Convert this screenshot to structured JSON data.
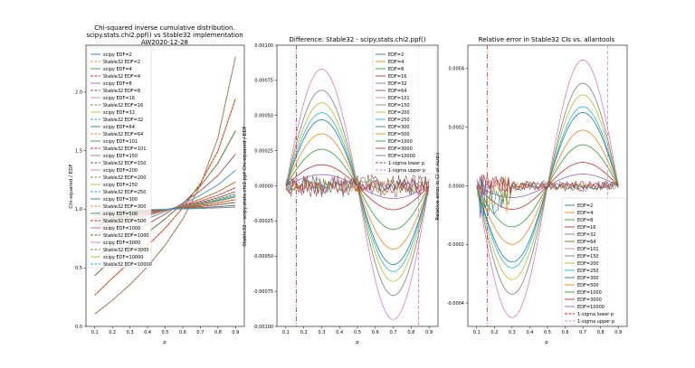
{
  "figure": {
    "panel1": {
      "title_lines": [
        "Chi-squared inverse cumulative distribution.",
        "scipy.stats.chi2.ppf() vs Stable32 implementation",
        "AW2020-12-28"
      ],
      "xlabel": "p",
      "ylabel": "Chi-squared / EDF"
    },
    "panel2": {
      "title": "Difference: Stable32 - scipy.stats.chi2.ppf()",
      "xlabel": "p",
      "ylabel": "Stable32 - scipy.stats.chi2.ppf  Chi-squared / EDF"
    },
    "panel3": {
      "title": "Relative error in Stable32 CIs vs. allantools",
      "xlabel": "p",
      "ylabel": "Relative error in CI of ADEV"
    }
  },
  "chart_data": [
    {
      "type": "line",
      "title": "Chi-squared inverse cumulative distribution. scipy.stats.chi2.ppf() vs Stable32 implementation AW2020-12-28",
      "xlabel": "p",
      "ylabel": "Chi-squared / EDF",
      "xlim": [
        0.05,
        0.95
      ],
      "ylim": [
        0.0,
        2.4
      ],
      "xticks": [
        "0.1",
        "0.2",
        "0.3",
        "0.4",
        "0.5",
        "0.6",
        "0.7",
        "0.8",
        "0.9"
      ],
      "yticks": [
        "0.0",
        "0.5",
        "1.0",
        "1.5",
        "2.0"
      ],
      "legend": "upper-left",
      "edf": [
        2,
        4,
        8,
        16,
        32,
        64,
        101,
        150,
        200,
        250,
        300,
        500,
        1000,
        3000,
        10000
      ],
      "legend_entries": [
        "scipy EDF=2",
        "Stable32 EDF=2",
        "scipy EDF=4",
        "Stable32 EDF=4",
        "scipy EDF=8",
        "Stable32 EDF=8",
        "scipy EDF=16",
        "Stable32 EDF=16",
        "scipy EDF=32",
        "Stable32 EDF=32",
        "scipy EDF=64",
        "Stable32 EDF=64",
        "scipy EDF=101",
        "Stable32 EDF=101",
        "scipy EDF=150",
        "Stable32 EDF=150",
        "scipy EDF=200",
        "Stable32 EDF=200",
        "scipy EDF=250",
        "Stable32 EDF=250",
        "scipy EDF=300",
        "Stable32 EDF=300",
        "scipy EDF=500",
        "Stable32 EDF=500",
        "scipy EDF=1000",
        "Stable32 EDF=1000",
        "scipy EDF=3000",
        "Stable32 EDF=3000",
        "scipy EDF=10000",
        "Stable32 EDF=10000"
      ],
      "series_colors": [
        "#1f77b4",
        "#ff7f0e",
        "#2ca02c",
        "#d62728",
        "#9467bd",
        "#8c564b",
        "#e377c2",
        "#7f7f7f",
        "#bcbd22",
        "#17becf",
        "#1f77b4",
        "#ff7f0e",
        "#2ca02c",
        "#d62728",
        "#9467bd",
        "#8c564b",
        "#e377c2",
        "#7f7f7f",
        "#bcbd22",
        "#17becf",
        "#1f77b4",
        "#ff7f0e",
        "#2ca02c",
        "#d62728",
        "#9467bd",
        "#8c564b",
        "#e377c2",
        "#7f7f7f",
        "#bcbd22",
        "#17becf"
      ],
      "curves": {
        "p": [
          0.1,
          0.2,
          0.3,
          0.4,
          0.5,
          0.6,
          0.7,
          0.8,
          0.9
        ],
        "EDF=2": [
          0.105,
          0.223,
          0.357,
          0.511,
          0.693,
          0.916,
          1.204,
          1.609,
          2.303
        ],
        "EDF=4": [
          0.266,
          0.412,
          0.549,
          0.688,
          0.839,
          1.011,
          1.22,
          1.497,
          1.945
        ],
        "EDF=8": [
          0.434,
          0.573,
          0.689,
          0.8,
          0.918,
          1.047,
          1.199,
          1.393,
          1.67
        ],
        "EDF=16": [
          0.578,
          0.697,
          0.789,
          0.873,
          0.959,
          1.052,
          1.157,
          1.288,
          1.47
        ],
        "EDF=32": [
          0.693,
          0.786,
          0.856,
          0.92,
          0.979,
          1.044,
          1.119,
          1.208,
          1.332
        ],
        "EDF=64": [
          0.779,
          0.85,
          0.9,
          0.946,
          0.989,
          1.034,
          1.087,
          1.15,
          1.233
        ],
        "EDF=101": [
          0.82,
          0.88,
          0.922,
          0.958,
          0.993,
          1.028,
          1.07,
          1.119,
          1.184
        ],
        "EDF=150": [
          0.853,
          0.902,
          0.936,
          0.966,
          0.995,
          1.024,
          1.058,
          1.098,
          1.15
        ],
        "EDF=200": [
          0.872,
          0.915,
          0.945,
          0.971,
          0.996,
          1.021,
          1.05,
          1.085,
          1.13
        ],
        "EDF=250": [
          0.885,
          0.924,
          0.951,
          0.974,
          0.997,
          1.019,
          1.045,
          1.076,
          1.116
        ],
        "EDF=300": [
          0.896,
          0.931,
          0.955,
          0.976,
          0.997,
          1.017,
          1.041,
          1.069,
          1.105
        ],
        "EDF=500": [
          0.919,
          0.946,
          0.965,
          0.982,
          0.998,
          1.014,
          1.032,
          1.054,
          1.082
        ],
        "EDF=1000": [
          0.943,
          0.962,
          0.975,
          0.987,
          0.999,
          1.01,
          1.023,
          1.038,
          1.058
        ],
        "EDF=3000": [
          0.967,
          0.978,
          0.986,
          0.993,
          0.999,
          1.006,
          1.013,
          1.022,
          1.033
        ],
        "EDF=10000": [
          0.982,
          0.988,
          0.992,
          0.996,
          1.0,
          1.003,
          1.007,
          1.012,
          1.018
        ]
      }
    },
    {
      "type": "line",
      "title": "Difference: Stable32 - scipy.stats.chi2.ppf()",
      "xlabel": "p",
      "ylabel": "Stable32 - scipy.stats.chi2.ppf  Chi-squared / EDF",
      "xlim": [
        0.05,
        0.95
      ],
      "ylim": [
        -0.001,
        0.001
      ],
      "xticks": [
        "0.1",
        "0.2",
        "0.3",
        "0.4",
        "0.5",
        "0.6",
        "0.7",
        "0.8",
        "0.9"
      ],
      "yticks": [
        "-0.00100",
        "-0.00075",
        "-0.00050",
        "-0.00025",
        "0.00000",
        "0.00025",
        "0.00050",
        "0.00075",
        "0.00100"
      ],
      "legend": "upper-right",
      "legend_entries": [
        "EDF=2",
        "EDF=4",
        "EDF=8",
        "EDF=16",
        "EDF=32",
        "EDF=64",
        "EDF=101",
        "EDF=150",
        "EDF=200",
        "EDF=250",
        "EDF=300",
        "EDF=500",
        "EDF=1000",
        "EDF=3000",
        "EDF=10000",
        "1-sigma lower p",
        "1-sigma upper p"
      ],
      "series_colors": [
        "#1f77b4",
        "#ff7f0e",
        "#2ca02c",
        "#d62728",
        "#9467bd",
        "#8c564b",
        "#e377c2",
        "#7f7f7f",
        "#bcbd22",
        "#17becf",
        "#1f77b4",
        "#ff7f0e",
        "#2ca02c",
        "#d62728",
        "#9467bd",
        "#d62728",
        "#e377c2"
      ],
      "vlines": {
        "lower_p": 0.159,
        "upper_p": 0.841
      },
      "peak_amplitudes": {
        "EDF=101": 0.00083,
        "EDF=150": 0.00068,
        "EDF=200": 0.00059,
        "EDF=250": 0.00052,
        "EDF=300": 0.00047,
        "EDF=500": 0.00037,
        "EDF=1000": 0.00026,
        "EDF=3000": 0.00015,
        "EDF=10000": 8e-05
      },
      "valley_amplitudes": {
        "EDF=101": -0.00095,
        "EDF=150": -0.00078,
        "EDF=200": -0.00068,
        "EDF=250": -0.00061,
        "EDF=300": -0.00056,
        "EDF=500": -0.00045,
        "EDF=1000": -0.00031,
        "EDF=3000": -0.00017,
        "EDF=10000": -9e-05
      }
    },
    {
      "type": "line",
      "title": "Relative error in Stable32 CIs vs. allantools",
      "xlabel": "p",
      "ylabel": "Relative error in CI of ADEV",
      "xlim": [
        0.05,
        0.95
      ],
      "ylim": [
        -0.00048,
        0.00048
      ],
      "xticks": [
        "0.1",
        "0.2",
        "0.3",
        "0.4",
        "0.5",
        "0.6",
        "0.7",
        "0.8",
        "0.9"
      ],
      "yticks": [
        "-0.0004",
        "-0.0002",
        "0.0000",
        "0.0002",
        "0.0004"
      ],
      "legend": "lower-right",
      "legend_entries": [
        "EDF=2",
        "EDF=4",
        "EDF=8",
        "EDF=16",
        "EDF=32",
        "EDF=64",
        "EDF=101",
        "EDF=150",
        "EDF=200",
        "EDF=250",
        "EDF=300",
        "EDF=500",
        "EDF=1000",
        "EDF=3000",
        "EDF=10000",
        "1-sigma lower p",
        "1-sigma upper p"
      ],
      "series_colors": [
        "#1f77b4",
        "#ff7f0e",
        "#2ca02c",
        "#d62728",
        "#9467bd",
        "#8c564b",
        "#e377c2",
        "#7f7f7f",
        "#bcbd22",
        "#17becf",
        "#1f77b4",
        "#ff7f0e",
        "#2ca02c",
        "#d62728",
        "#9467bd",
        "#d62728",
        "#e377c2"
      ],
      "vlines": {
        "lower_p": 0.159,
        "upper_p": 0.841
      },
      "peak_amplitudes": {
        "EDF=101": 0.00043,
        "EDF=150": 0.00035,
        "EDF=200": 0.00031,
        "EDF=250": 0.00027,
        "EDF=300": 0.00025,
        "EDF=500": 0.00019,
        "EDF=1000": 0.00014,
        "EDF=3000": 8e-05,
        "EDF=10000": 4e-05
      },
      "valley_amplitudes": {
        "EDF=101": -0.00045,
        "EDF=150": -0.00037,
        "EDF=200": -0.00032,
        "EDF=250": -0.00028,
        "EDF=300": -0.00026,
        "EDF=500": -0.0002,
        "EDF=1000": -0.00014,
        "EDF=3000": -8e-05,
        "EDF=10000": -4e-05
      }
    }
  ]
}
